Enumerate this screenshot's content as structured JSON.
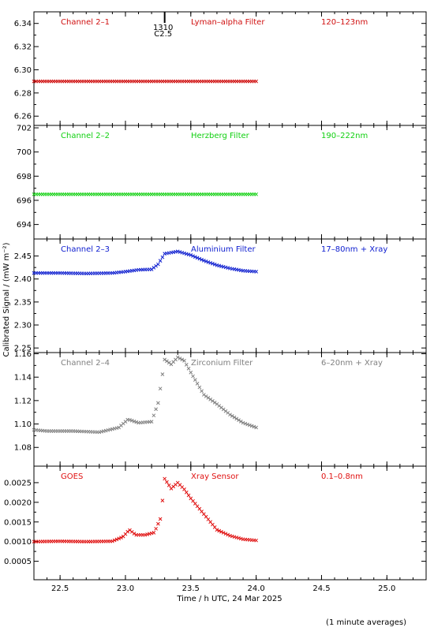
{
  "chart_data": [
    {
      "type": "scatter",
      "label_left": "Channel 2–1",
      "label_mid": "Lyman–alpha Filter",
      "label_right": "120–123nm",
      "color": "#d01010",
      "ylim": [
        6.252,
        6.35
      ],
      "yticks": [
        "6.26",
        "6.28",
        "6.30",
        "6.32",
        "6.34"
      ],
      "yticks_v": [
        6.26,
        6.28,
        6.3,
        6.32,
        6.34
      ],
      "marker_labels": [
        "1310",
        "C2.5"
      ],
      "marker_x": 23.3,
      "series": [
        {
          "x_range": [
            22.3,
            24.0
          ],
          "y_const": 6.29
        }
      ]
    },
    {
      "type": "scatter",
      "label_left": "Channel 2–2",
      "label_mid": "Herzberg Filter",
      "label_right": "190–222nm",
      "color": "#10d010",
      "ylim": [
        692.8,
        702.2
      ],
      "yticks": [
        "694",
        "696",
        "698",
        "700",
        "702"
      ],
      "yticks_v": [
        694,
        696,
        698,
        700,
        702
      ],
      "series": [
        {
          "x_range": [
            22.3,
            24.0
          ],
          "y_const": 696.5
        }
      ]
    },
    {
      "type": "scatter",
      "label_left": "Channel 2–3",
      "label_mid": "Aluminium Filter",
      "label_right": "17–80nm + Xray",
      "color": "#1020d0",
      "ylim": [
        2.24,
        2.487
      ],
      "yticks": [
        "2.25",
        "2.30",
        "2.35",
        "2.40",
        "2.45"
      ],
      "yticks_v": [
        2.25,
        2.3,
        2.35,
        2.4,
        2.45
      ],
      "series": [
        {
          "x": [
            22.3,
            22.5,
            22.7,
            22.9,
            23.0,
            23.1,
            23.2,
            23.25,
            23.3,
            23.4,
            23.5,
            23.6,
            23.7,
            23.8,
            23.9,
            24.0
          ],
          "y": [
            2.413,
            2.413,
            2.412,
            2.413,
            2.416,
            2.42,
            2.421,
            2.432,
            2.455,
            2.46,
            2.452,
            2.44,
            2.43,
            2.423,
            2.418,
            2.416
          ]
        }
      ]
    },
    {
      "type": "scatter",
      "label_left": "Channel 2–4",
      "label_mid": "Zirconium Filter",
      "label_right": "6–20nm + Xray",
      "color": "#808080",
      "ylim": [
        1.064,
        1.161
      ],
      "yticks": [
        "1.08",
        "1.10",
        "1.12",
        "1.14",
        "1.16"
      ],
      "yticks_v": [
        1.08,
        1.1,
        1.12,
        1.14,
        1.16
      ],
      "series": [
        {
          "x": [
            22.3,
            22.4,
            22.6,
            22.8,
            22.95,
            23.02,
            23.1,
            23.2,
            23.25,
            23.28,
            23.3,
            23.35,
            23.4,
            23.45,
            23.5,
            23.6,
            23.7,
            23.8,
            23.9,
            24.0
          ],
          "y": [
            1.095,
            1.094,
            1.094,
            1.093,
            1.097,
            1.104,
            1.101,
            1.102,
            1.118,
            1.14,
            1.155,
            1.151,
            1.157,
            1.154,
            1.144,
            1.125,
            1.117,
            1.108,
            1.101,
            1.097
          ]
        }
      ]
    },
    {
      "type": "scatter",
      "label_left": "GOES",
      "label_mid": "Xray Sensor",
      "label_right": "0.1–0.8nm",
      "color": "#e01010",
      "ylim": [
        3e-05,
        0.00292
      ],
      "yticks": [
        "0.0005",
        "0.0010",
        "0.0015",
        "0.0020",
        "0.0025"
      ],
      "yticks_v": [
        0.0005,
        0.001,
        0.0015,
        0.002,
        0.0025
      ],
      "series": [
        {
          "x": [
            22.3,
            22.5,
            22.7,
            22.9,
            22.98,
            23.03,
            23.08,
            23.15,
            23.22,
            23.27,
            23.3,
            23.35,
            23.4,
            23.45,
            23.5,
            23.6,
            23.7,
            23.8,
            23.9,
            24.0
          ],
          "y": [
            0.001,
            0.00101,
            0.001,
            0.00101,
            0.00112,
            0.0013,
            0.00117,
            0.00117,
            0.00123,
            0.0016,
            0.0026,
            0.00235,
            0.0025,
            0.00233,
            0.0021,
            0.0017,
            0.0013,
            0.00115,
            0.00106,
            0.00103
          ]
        }
      ]
    }
  ],
  "x_axis": {
    "range": [
      22.3,
      25.3
    ],
    "ticks": [
      "22.5",
      "23.0",
      "23.5",
      "24.0",
      "24.5",
      "25.0"
    ],
    "ticks_v": [
      22.5,
      23.0,
      23.5,
      24.0,
      24.5,
      25.0
    ],
    "label": "Time / h UTC, 24 Mar 2025"
  },
  "ylabel": "Calibrated Signal / (mW m⁻²)",
  "footer": "(1 minute averages)"
}
